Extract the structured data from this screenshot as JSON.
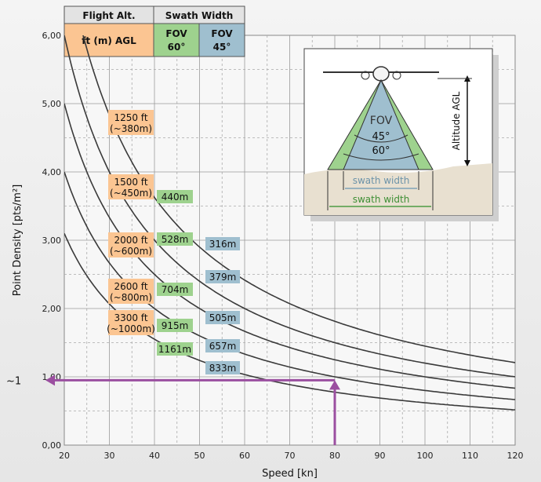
{
  "chart_data": {
    "type": "line",
    "xlabel": "Speed [kn]",
    "ylabel": "Point Density [pts/m²]",
    "xlim": [
      20,
      120
    ],
    "ylim": [
      0,
      6
    ],
    "xticks": [
      "20",
      "30",
      "40",
      "50",
      "60",
      "70",
      "80",
      "90",
      "100",
      "110",
      "120"
    ],
    "yticks": [
      "0,00",
      "1,00",
      "2,00",
      "3,00",
      "4,00",
      "5,00",
      "6,00"
    ],
    "grid": true,
    "header": {
      "flight_alt": "Flight Alt.",
      "swath_width": "Swath Width",
      "agl": "ft (m) AGL",
      "fov60_a": "FOV",
      "fov60_b": "60°",
      "fov45_a": "FOV",
      "fov45_b": "45°"
    },
    "series": [
      {
        "k": 145,
        "alt": "1250 ft",
        "alt_m": "(~380m)",
        "sw60": "440m",
        "sw45": "316m"
      },
      {
        "k": 120,
        "alt": "1500 ft",
        "alt_m": "(~450m)",
        "sw60": "528m",
        "sw45": "379m"
      },
      {
        "k": 100,
        "alt": "2000 ft",
        "alt_m": "(~600m)",
        "sw60": "704m",
        "sw45": "505m"
      },
      {
        "k": 80,
        "alt": "2600 ft",
        "alt_m": "(~800m)",
        "sw60": "915m",
        "sw45": "657m"
      },
      {
        "k": 62,
        "alt": "3300 ft",
        "alt_m": "(~1000m)",
        "sw60": "1161m",
        "sw45": "833m"
      }
    ],
    "marker": {
      "x": 80,
      "y": 0.95,
      "y_label": "~1"
    },
    "inset": {
      "fov": "FOV",
      "angle45": "45°",
      "angle60": "60°",
      "altitude": "Altitude AGL",
      "swath1": "swath width",
      "swath2": "swath width"
    },
    "colors": {
      "orange": "#fbc592",
      "green": "#9ed28e",
      "blue": "#9fbfcf",
      "line": "#3a3a3a",
      "marker": "#9b4fa0"
    }
  }
}
